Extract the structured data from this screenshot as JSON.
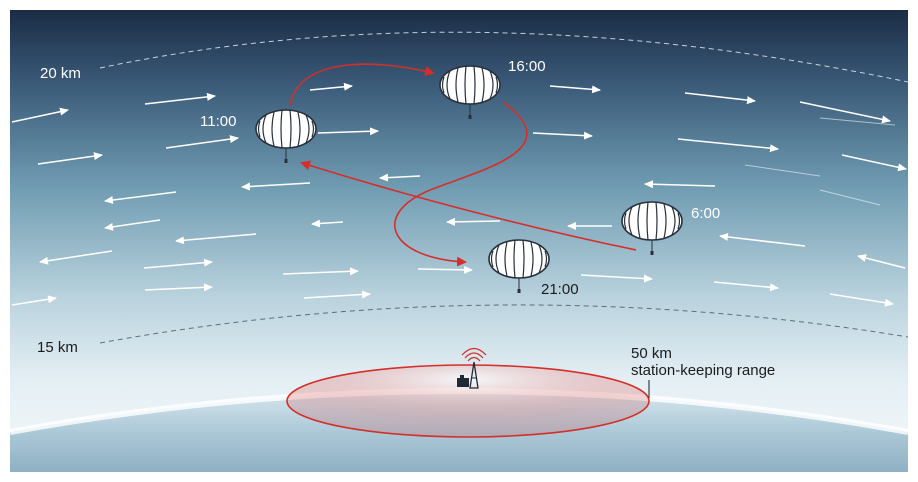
{
  "altitudes": {
    "upper": "20 km",
    "lower": "15 km"
  },
  "balloons": [
    {
      "time": "6:00"
    },
    {
      "time": "11:00"
    },
    {
      "time": "16:00"
    },
    {
      "time": "21:00"
    }
  ],
  "range": {
    "distance": "50 km",
    "caption": "station-keeping range"
  },
  "colors": {
    "sky_top": "#1b2c45",
    "sky_mid": "#6f9bb1",
    "sky_low": "#e8f1f5",
    "trajectory": "#d42f2a",
    "wind_arrow": "#ffffff",
    "ground": "#c9dce5"
  }
}
